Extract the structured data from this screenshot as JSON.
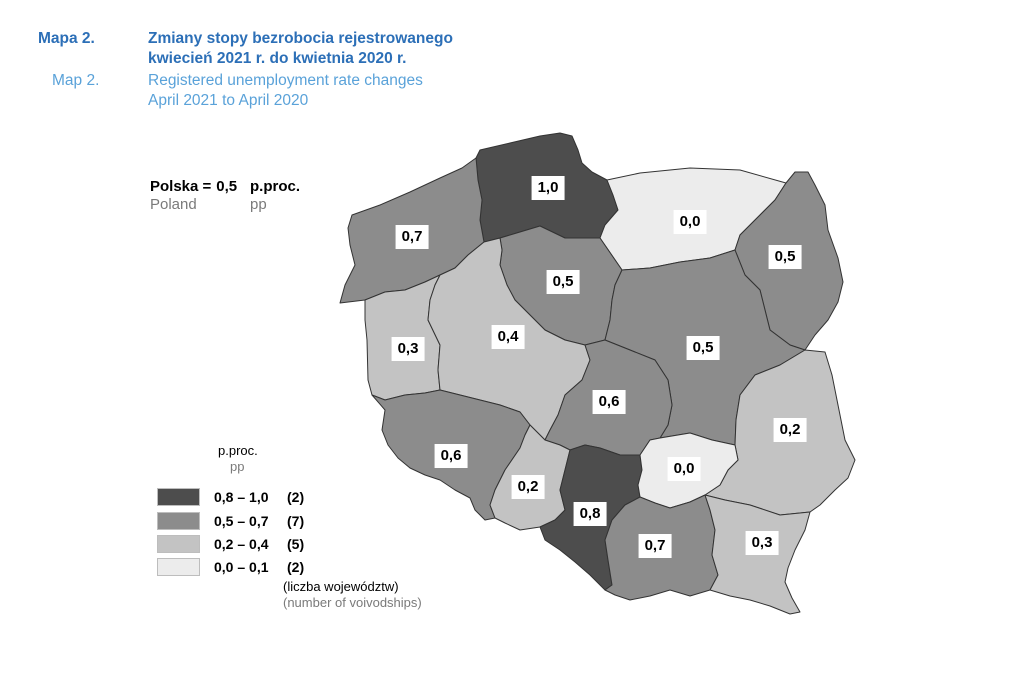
{
  "header": {
    "pl_number": "Mapa 2.",
    "pl_title_line1": "Zmiany stopy bezrobocia rejestrowanego",
    "pl_title_line2": "kwiecień 2021 r. do kwietnia 2020 r.",
    "en_number": "Map 2.",
    "en_title_line1": "Registered unemployment rate changes",
    "en_title_line2": "April 2021 to April 2020"
  },
  "national": {
    "label_pl": "Polska =",
    "value": "0,5",
    "unit_pl": "p.proc.",
    "label_en": "Poland",
    "unit_en": "pp"
  },
  "legend": {
    "unit_pl": "p.proc.",
    "unit_en": "pp",
    "classes": [
      {
        "range": "0,8 – 1,0",
        "count": "(2)",
        "color": "#4d4d4d"
      },
      {
        "range": "0,5 – 0,7",
        "count": "(7)",
        "color": "#8c8c8c"
      },
      {
        "range": "0,2 – 0,4",
        "count": "(5)",
        "color": "#c3c3c3"
      },
      {
        "range": "0,0 – 0,1",
        "count": "(2)",
        "color": "#ececec"
      }
    ],
    "count_note_pl": "(liczba województw)",
    "count_note_en": "(number of voivodships)"
  },
  "colors": {
    "title_pl": "#2c6fb7",
    "title_en": "#5aa2d9",
    "secondary_text": "#7a7a7a",
    "border": "#333333"
  },
  "map": {
    "regions": {
      "pomorskie": "1,0",
      "zachodniopomorskie": "0,7",
      "warminsko_mazurskie": "0,0",
      "podlaskie": "0,5",
      "kujawsko_pomorskie": "0,5",
      "lubuskie": "0,3",
      "wielkopolskie": "0,4",
      "mazowieckie": "0,5",
      "lodzkie": "0,6",
      "lubelskie": "0,2",
      "dolnoslaskie": "0,6",
      "opolskie": "0,2",
      "slaskie": "0,8",
      "swietokrzyskie": "0,0",
      "malopolskie": "0,7",
      "podkarpackie": "0,3"
    }
  }
}
